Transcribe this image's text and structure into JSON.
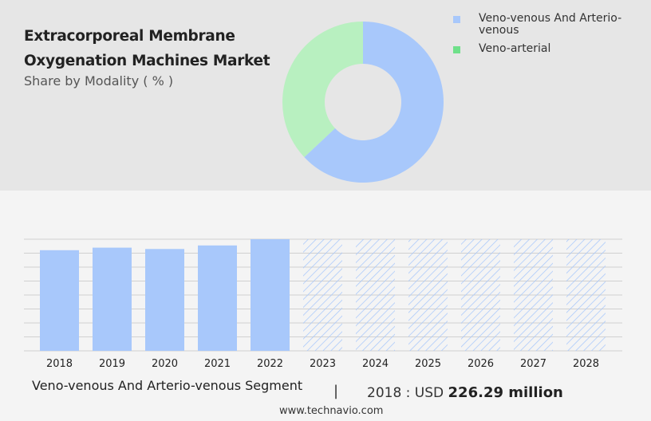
{
  "header": {
    "title": "Extracorporeal Membrane Oxygenation Machines Market",
    "subtitle": "Share by Modality ( % )"
  },
  "colors": {
    "blue": "#a8c8fb",
    "green": "#b8f0c0",
    "green_legend": "#6fe08a",
    "grid": "#d0d0d0"
  },
  "chart_data": [
    {
      "type": "pie",
      "donut": true,
      "legend_position": "right",
      "series": [
        {
          "name": "Veno-venous And Arterio-venous",
          "value": 63
        },
        {
          "name": "Veno-arterial",
          "value": 37
        }
      ]
    },
    {
      "type": "bar",
      "categories": [
        "2018",
        "2019",
        "2020",
        "2021",
        "2022",
        "2023",
        "2024",
        "2025",
        "2026",
        "2027",
        "2028"
      ],
      "values": [
        226.29,
        232,
        229,
        237,
        251,
        null,
        null,
        null,
        null,
        null,
        null
      ],
      "forecast_from": "2023",
      "grid": true
    }
  ],
  "footer": {
    "segment": "Veno-venous And Arterio-venous Segment",
    "separator": "|",
    "value_prefix": "2018 : USD",
    "value_bold": "226.29 million",
    "source": "www.technavio.com"
  }
}
